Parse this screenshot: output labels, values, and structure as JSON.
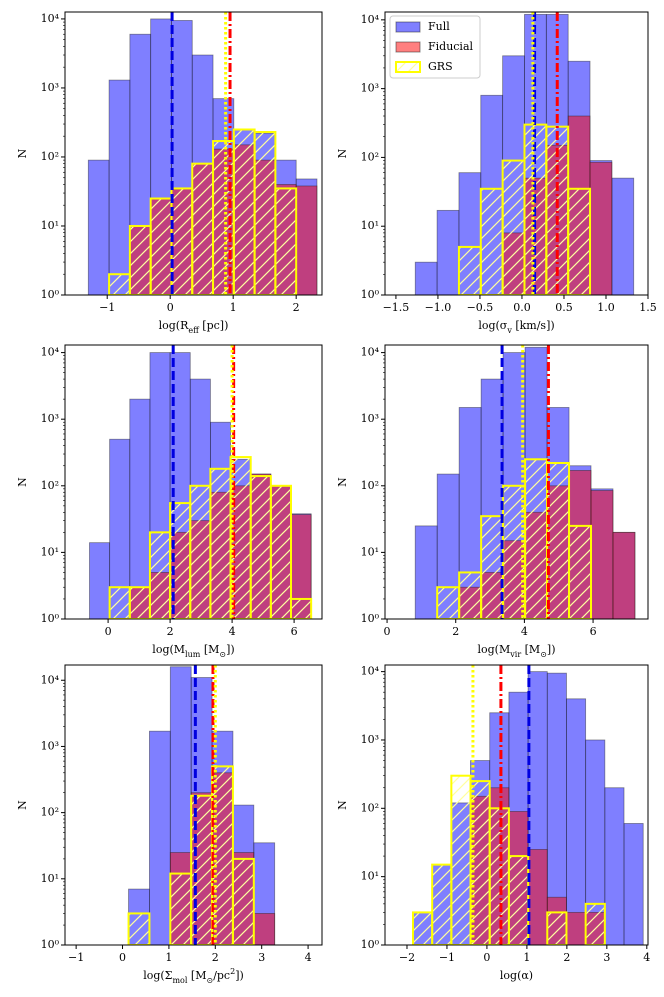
{
  "chart_data": [
    {
      "type": "histogram",
      "xlabel": [
        {
          "text": "log(R"
        },
        {
          "sub": "eff"
        },
        {
          "text": " [pc])"
        }
      ],
      "ylabel": "N",
      "log_y": true,
      "xlim": [
        -1.67,
        2.41
      ],
      "xticks": [
        {
          "value": -1,
          "label": "−1"
        },
        0,
        1,
        2
      ],
      "ylim": [
        1,
        12600
      ],
      "yticks": [
        {
          "value": 1,
          "label": "10⁰"
        },
        {
          "value": 10,
          "label": "10¹"
        },
        {
          "value": 100,
          "label": "10²"
        },
        {
          "value": 1000,
          "label": "10³"
        },
        {
          "value": 10000,
          "label": "10⁴"
        }
      ],
      "bins": [
        -1.3,
        -0.97,
        -0.64,
        -0.31,
        0.02,
        0.35,
        0.68,
        1.01,
        1.34,
        1.67,
        2.0,
        2.33
      ],
      "series": [
        {
          "color": "#0000ff",
          "alpha": 0.5,
          "values": [
            90,
            1300,
            6000,
            10000,
            9500,
            3000,
            700,
            250,
            220,
            90,
            48
          ],
          "median": 0.03,
          "linestyle": "dashed"
        },
        {
          "color": "#ff0000",
          "alpha": 0.5,
          "values": [
            0,
            0,
            10,
            25,
            35,
            80,
            130,
            150,
            90,
            40,
            38
          ],
          "median": 0.95,
          "linestyle": "dashdot"
        },
        {
          "color": "#ffff00",
          "hatch": "/",
          "values": [
            0,
            2,
            10,
            25,
            35,
            80,
            170,
            250,
            230,
            35,
            0
          ],
          "median": 0.88,
          "linestyle": "dotted"
        }
      ]
    },
    {
      "type": "histogram",
      "xlabel": [
        {
          "text": "log(σ"
        },
        {
          "sub": "v"
        },
        {
          "text": " [km/s])"
        }
      ],
      "ylabel": "N",
      "log_y": true,
      "legend": "upper left",
      "xlim": [
        -1.63,
        1.5
      ],
      "xticks": [
        {
          "value": -1.5,
          "label": "−1.5"
        },
        {
          "value": -1,
          "label": "−1.0"
        },
        {
          "value": -0.5,
          "label": "−0.5"
        },
        {
          "value": 0,
          "label": "0.0"
        },
        {
          "value": 0.5,
          "label": "0.5"
        },
        {
          "value": 1,
          "label": "1.0"
        },
        {
          "value": 1.5,
          "label": "1.5"
        }
      ],
      "ylim": [
        1,
        13000
      ],
      "yticks": [
        {
          "value": 1,
          "label": "10⁰"
        },
        {
          "value": 10,
          "label": "10¹"
        },
        {
          "value": 100,
          "label": "10²"
        },
        {
          "value": 1000,
          "label": "10³"
        },
        {
          "value": 10000,
          "label": "10⁴"
        }
      ],
      "bins": [
        -1.27,
        -1.01,
        -0.75,
        -0.49,
        -0.23,
        0.03,
        0.29,
        0.55,
        0.81,
        1.07,
        1.33
      ],
      "series": [
        {
          "name": "Full",
          "color": "#0000ff",
          "alpha": 0.5,
          "values": [
            3,
            17,
            60,
            800,
            3000,
            12000,
            12000,
            2500,
            90,
            50
          ],
          "median": 0.15,
          "linestyle": "dashed"
        },
        {
          "name": "Fiducial",
          "color": "#ff0000",
          "alpha": 0.5,
          "values": [
            0,
            0,
            0,
            0,
            8,
            50,
            150,
            400,
            85,
            0
          ],
          "median": 0.42,
          "linestyle": "dashdot"
        },
        {
          "name": "GRS",
          "color": "#ffff00",
          "hatch": "/",
          "values": [
            0,
            0,
            5,
            35,
            90,
            300,
            280,
            35,
            0,
            0
          ],
          "median": 0.13,
          "linestyle": "dotted"
        }
      ]
    },
    {
      "type": "histogram",
      "xlabel": [
        {
          "text": "log(M"
        },
        {
          "sub": "lum"
        },
        {
          "text": " [M"
        },
        {
          "sub": "⊙"
        },
        {
          "text": "])"
        }
      ],
      "ylabel": "N",
      "log_y": true,
      "xlim": [
        -1.39,
        6.9
      ],
      "xticks": [
        0,
        2,
        4,
        6
      ],
      "ylim": [
        1,
        13000
      ],
      "yticks": [
        {
          "value": 1,
          "label": "10⁰"
        },
        {
          "value": 10,
          "label": "10¹"
        },
        {
          "value": 100,
          "label": "10²"
        },
        {
          "value": 1000,
          "label": "10³"
        },
        {
          "value": 10000,
          "label": "10⁴"
        }
      ],
      "bins": [
        -0.6,
        0.05,
        0.7,
        1.35,
        2.0,
        2.65,
        3.3,
        3.95,
        4.6,
        5.25,
        5.9,
        6.55
      ],
      "series": [
        {
          "color": "#0000ff",
          "alpha": 0.5,
          "values": [
            14,
            500,
            2000,
            10000,
            10000,
            4000,
            900,
            250,
            150,
            100,
            38
          ],
          "median": 2.1,
          "linestyle": "dashed"
        },
        {
          "color": "#ff0000",
          "alpha": 0.5,
          "values": [
            0,
            0,
            3,
            5,
            20,
            30,
            80,
            100,
            150,
            100,
            37
          ],
          "median": 4.05,
          "linestyle": "dashdot"
        },
        {
          "color": "#ffff00",
          "hatch": "/",
          "values": [
            0,
            3,
            3,
            20,
            55,
            100,
            180,
            270,
            140,
            100,
            2
          ],
          "median": 4.0,
          "linestyle": "dotted"
        }
      ]
    },
    {
      "type": "histogram",
      "xlabel": [
        {
          "text": "log(M"
        },
        {
          "sub": "vir"
        },
        {
          "text": " [M"
        },
        {
          "sub": "⊙"
        },
        {
          "text": "])"
        }
      ],
      "ylabel": "N",
      "log_y": true,
      "xlim": [
        -0.06,
        7.6
      ],
      "xticks": [
        0,
        2,
        4,
        6
      ],
      "ylim": [
        1,
        13000
      ],
      "yticks": [
        {
          "value": 1,
          "label": "10⁰"
        },
        {
          "value": 10,
          "label": "10¹"
        },
        {
          "value": 100,
          "label": "10²"
        },
        {
          "value": 1000,
          "label": "10³"
        },
        {
          "value": 10000,
          "label": "10⁴"
        }
      ],
      "bins": [
        0.82,
        1.46,
        2.1,
        2.74,
        3.38,
        4.02,
        4.66,
        5.3,
        5.94,
        6.58,
        7.22
      ],
      "series": [
        {
          "color": "#0000ff",
          "alpha": 0.5,
          "values": [
            25,
            150,
            1500,
            4000,
            10000,
            12000,
            1500,
            200,
            90,
            20
          ],
          "median": 3.35,
          "linestyle": "dashed"
        },
        {
          "color": "#ff0000",
          "alpha": 0.5,
          "values": [
            0,
            0,
            3,
            5,
            15,
            40,
            100,
            170,
            85,
            20
          ],
          "median": 4.7,
          "linestyle": "dashdot"
        },
        {
          "color": "#ffff00",
          "hatch": "/",
          "values": [
            0,
            3,
            5,
            35,
            100,
            250,
            220,
            25,
            0,
            0
          ],
          "median": 3.95,
          "linestyle": "dotted"
        }
      ]
    },
    {
      "type": "histogram",
      "xlabel": [
        {
          "text": "log(Σ"
        },
        {
          "sub": "mol"
        },
        {
          "text": " [M"
        },
        {
          "sub": "⊙"
        },
        {
          "text": "/pc"
        },
        {
          "sup": "2"
        },
        {
          "text": "])"
        }
      ],
      "ylabel": "N",
      "log_y": true,
      "xlim": [
        -1.24,
        4.3
      ],
      "xticks": [
        {
          "value": -1,
          "label": "−1"
        },
        0,
        1,
        2,
        3,
        4
      ],
      "ylim": [
        1,
        17000
      ],
      "yticks": [
        {
          "value": 1,
          "label": "10⁰"
        },
        {
          "value": 10,
          "label": "10¹"
        },
        {
          "value": 100,
          "label": "10²"
        },
        {
          "value": 1000,
          "label": "10³"
        },
        {
          "value": 10000,
          "label": "10⁴"
        }
      ],
      "bins": [
        -0.32,
        0.13,
        0.58,
        1.03,
        1.48,
        1.93,
        2.38,
        2.83,
        3.28
      ],
      "series": [
        {
          "color": "#0000ff",
          "alpha": 0.5,
          "values": [
            1,
            7,
            1700,
            16000,
            11000,
            1700,
            130,
            35
          ],
          "median": 1.57,
          "linestyle": "dashed"
        },
        {
          "color": "#ff0000",
          "alpha": 0.5,
          "values": [
            0,
            0,
            0,
            25,
            200,
            400,
            25,
            3
          ],
          "median": 1.95,
          "linestyle": "dashdot"
        },
        {
          "color": "#ffff00",
          "hatch": "/",
          "values": [
            1,
            3,
            0,
            12,
            180,
            500,
            20,
            0
          ],
          "median": 2.0,
          "linestyle": "dotted"
        }
      ]
    },
    {
      "type": "histogram",
      "xlabel": [
        {
          "text": "log(α)"
        }
      ],
      "ylabel": "N",
      "log_y": true,
      "xlim": [
        -2.55,
        4.03
      ],
      "xticks": [
        {
          "value": -2,
          "label": "−2"
        },
        {
          "value": -1,
          "label": "−1"
        },
        0,
        1,
        2,
        3,
        4
      ],
      "ylim": [
        1,
        12500
      ],
      "yticks": [
        {
          "value": 1,
          "label": "10⁰"
        },
        {
          "value": 10,
          "label": "10¹"
        },
        {
          "value": 100,
          "label": "10²"
        },
        {
          "value": 1000,
          "label": "10³"
        },
        {
          "value": 10000,
          "label": "10⁴"
        }
      ],
      "bins": [
        -1.85,
        -1.37,
        -0.89,
        -0.41,
        0.07,
        0.55,
        1.03,
        1.51,
        1.99,
        2.47,
        2.95,
        3.43,
        3.91
      ],
      "series": [
        {
          "color": "#0000ff",
          "alpha": 0.5,
          "values": [
            3,
            15,
            120,
            500,
            2500,
            5000,
            10000,
            9500,
            4000,
            1000,
            200,
            60
          ],
          "median": 1.05,
          "linestyle": "dashed"
        },
        {
          "color": "#ff0000",
          "alpha": 0.5,
          "values": [
            0,
            0,
            0,
            150,
            200,
            90,
            25,
            5,
            3,
            3,
            0,
            0
          ],
          "median": 0.35,
          "linestyle": "dashdot"
        },
        {
          "color": "#ffff00",
          "hatch": "/",
          "values": [
            3,
            15,
            300,
            250,
            100,
            20,
            0,
            3,
            0,
            4,
            0,
            0
          ],
          "median": -0.35,
          "linestyle": "dotted"
        }
      ]
    }
  ]
}
